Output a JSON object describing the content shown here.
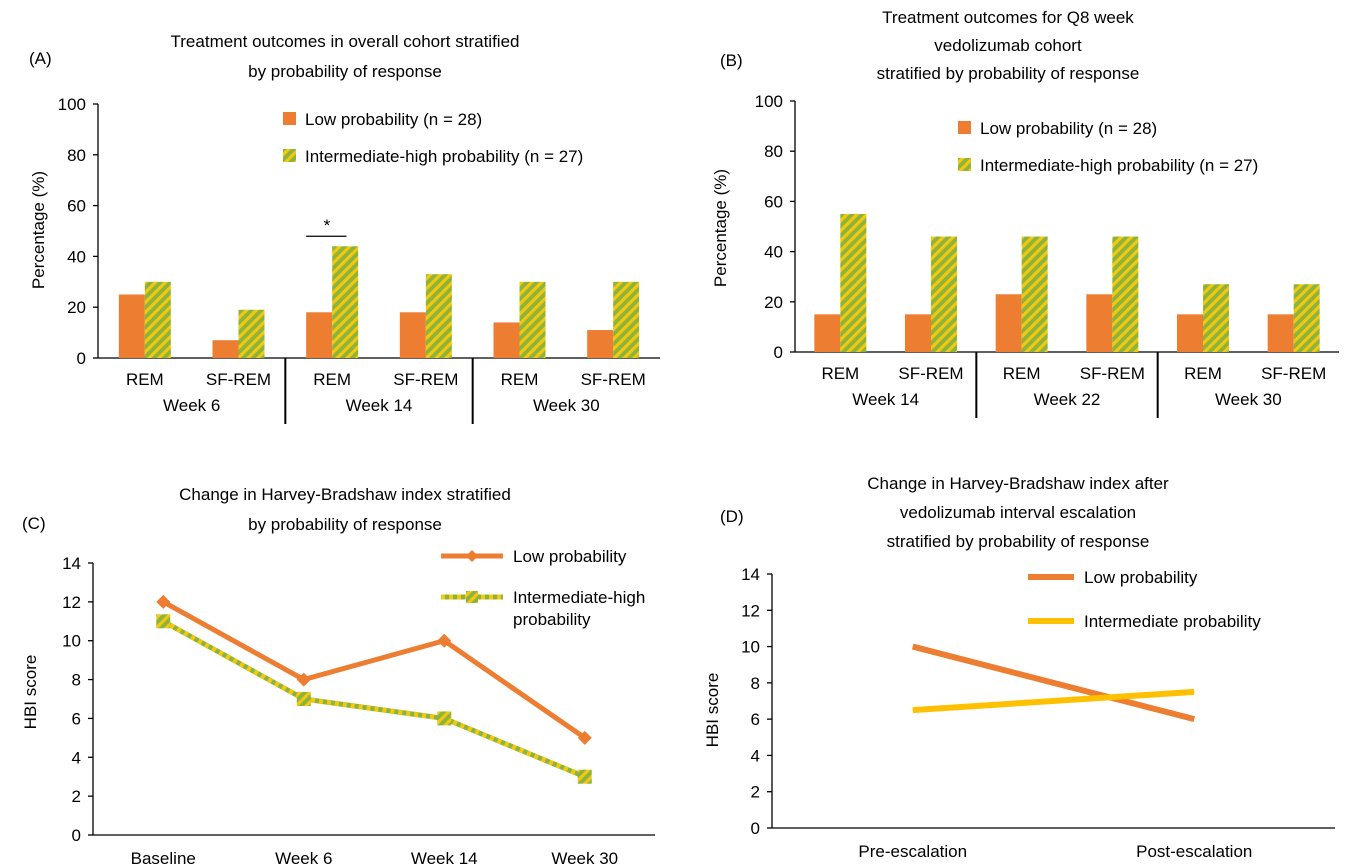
{
  "colors": {
    "orange": "#ED7D31",
    "hatch_base": "#8DB33A",
    "hatch_stripe": "#F2C811",
    "yellow": "#FFC000"
  },
  "chart_data": [
    {
      "panel": "(A)",
      "type": "bar",
      "title": [
        "Treatment outcomes in overall cohort stratified",
        "by probability of response"
      ],
      "ylabel": "Percentage (%)",
      "ylim": [
        0,
        100
      ],
      "yticks": [
        0,
        20,
        40,
        60,
        80,
        100
      ],
      "categories": [
        "REM",
        "SF-REM",
        "REM",
        "SF-REM",
        "REM",
        "SF-REM"
      ],
      "groups": [
        "Week 6",
        "Week 14",
        "Week 30"
      ],
      "series": [
        {
          "name": "Low probability (n = 28)",
          "style": "solid",
          "values": [
            25,
            7,
            18,
            18,
            14,
            11
          ]
        },
        {
          "name": "Intermediate-high probability (n = 27)",
          "style": "hatch",
          "values": [
            30,
            19,
            44,
            33,
            30,
            30
          ]
        }
      ],
      "annotations": [
        {
          "text": "*",
          "category_index": 2
        }
      ],
      "grid": false,
      "legend": "top-right"
    },
    {
      "panel": "(B)",
      "type": "bar",
      "title": [
        "Treatment outcomes for Q8 week",
        "vedolizumab cohort",
        "stratified by probability of response"
      ],
      "ylabel": "Percentage (%)",
      "ylim": [
        0,
        100
      ],
      "yticks": [
        0,
        20,
        40,
        60,
        80,
        100
      ],
      "categories": [
        "REM",
        "SF-REM",
        "REM",
        "SF-REM",
        "REM",
        "SF-REM"
      ],
      "groups": [
        "Week 14",
        "Week 22",
        "Week 30"
      ],
      "series": [
        {
          "name": "Low probability (n = 28)",
          "style": "solid",
          "values": [
            15,
            15,
            23,
            23,
            15,
            15
          ]
        },
        {
          "name": "Intermediate-high probability (n = 27)",
          "style": "hatch",
          "values": [
            55,
            46,
            46,
            46,
            27,
            27
          ]
        }
      ],
      "grid": false,
      "legend": "top-right"
    },
    {
      "panel": "(C)",
      "type": "line",
      "title": [
        "Change in Harvey-Bradshaw index stratified",
        "by probability of response"
      ],
      "ylabel": "HBI score",
      "ylim": [
        0,
        14
      ],
      "yticks": [
        0,
        2,
        4,
        6,
        8,
        10,
        12,
        14
      ],
      "categories": [
        "Baseline",
        "Week 6",
        "Week 14",
        "Week 30"
      ],
      "series": [
        {
          "name": "Low probability",
          "name_lines": [
            "Low probability"
          ],
          "style": "solid",
          "marker": "diamond",
          "values": [
            12,
            8,
            10,
            5
          ]
        },
        {
          "name": "Intermediate-high probability",
          "name_lines": [
            "Intermediate-high",
            "probability"
          ],
          "style": "hatch",
          "marker": "square",
          "values": [
            11,
            7,
            6,
            3
          ]
        }
      ],
      "grid": false,
      "legend": "top-right"
    },
    {
      "panel": "(D)",
      "type": "line",
      "title": [
        "Change in Harvey-Bradshaw index after",
        "vedolizumab interval escalation",
        "stratified by probability of response"
      ],
      "ylabel": "HBI score",
      "ylim": [
        0,
        14
      ],
      "yticks": [
        0,
        2,
        4,
        6,
        8,
        10,
        12,
        14
      ],
      "categories": [
        "Pre-escalation",
        "Post-escalation"
      ],
      "series": [
        {
          "name": "Low probability",
          "name_lines": [
            "Low probability"
          ],
          "style": "solid",
          "values": [
            10,
            6
          ]
        },
        {
          "name": "Intermediate probability",
          "name_lines": [
            "Intermediate probability"
          ],
          "style": "yellow",
          "values": [
            6.5,
            7.5
          ]
        }
      ],
      "grid": false,
      "legend": "top-right"
    }
  ]
}
